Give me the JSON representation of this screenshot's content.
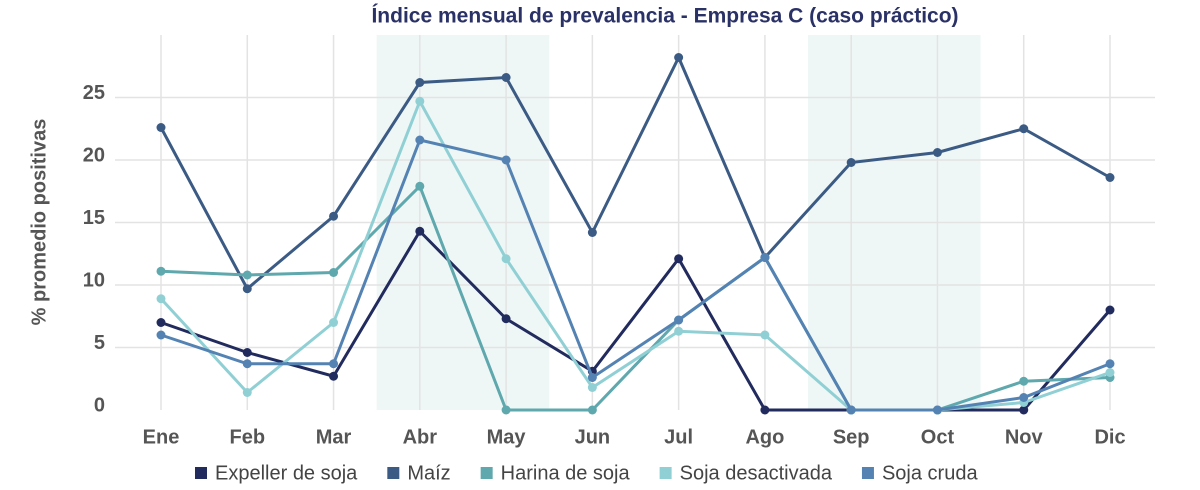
{
  "chart_data": {
    "type": "line",
    "title": "Índice mensual de prevalencia - Empresa C (caso práctico)",
    "y_label": "% promedio positivas",
    "categories": [
      "Ene",
      "Feb",
      "Mar",
      "Abr",
      "May",
      "Jun",
      "Jul",
      "Ago",
      "Sep",
      "Oct",
      "Nov",
      "Dic"
    ],
    "series": [
      {
        "name": "Expeller de soja",
        "color": "#222b5e",
        "values": [
          7.0,
          4.6,
          2.7,
          14.3,
          7.3,
          3.1,
          12.1,
          0,
          0,
          0,
          0,
          8.0
        ]
      },
      {
        "name": "Maíz",
        "color": "#3b5b85",
        "values": [
          22.6,
          9.7,
          15.5,
          26.2,
          26.6,
          14.2,
          28.2,
          12.2,
          19.8,
          20.6,
          22.5,
          18.6
        ]
      },
      {
        "name": "Harina de soja",
        "color": "#5fa8ad",
        "values": [
          11.1,
          10.8,
          11.0,
          17.9,
          0,
          0,
          7.2,
          12.2,
          0,
          0,
          2.3,
          2.6
        ]
      },
      {
        "name": "Soja desactivada",
        "color": "#90d0d5",
        "values": [
          8.9,
          1.4,
          7.0,
          24.7,
          12.1,
          1.8,
          6.3,
          6.0,
          0,
          0,
          0.6,
          3.0
        ]
      },
      {
        "name": "Soja cruda",
        "color": "#5483b3",
        "values": [
          6.0,
          3.7,
          3.7,
          21.6,
          20.0,
          2.6,
          7.2,
          12.2,
          0,
          0,
          1.0,
          3.7
        ]
      }
    ],
    "ylim": [
      0,
      30
    ],
    "yticks": [
      0,
      5,
      10,
      15,
      20,
      25
    ],
    "grid": true,
    "shaded_ranges": [
      [
        3,
        4
      ],
      [
        8,
        9
      ]
    ],
    "shade_color": "#eef7f6",
    "legend": "bottom"
  }
}
